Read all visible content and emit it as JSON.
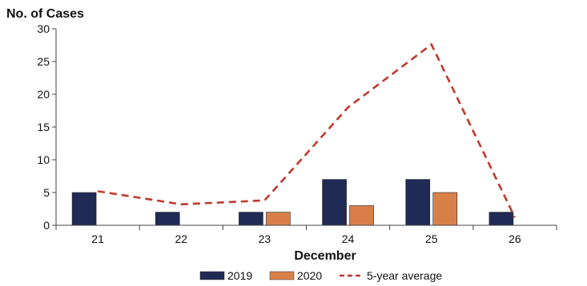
{
  "chart_data": {
    "type": "bar",
    "ylabel": "No. of Cases",
    "xlabel": "December",
    "categories": [
      "21",
      "22",
      "23",
      "24",
      "25",
      "26"
    ],
    "ylim": [
      0,
      30
    ],
    "yticks": [
      0,
      5,
      10,
      15,
      20,
      25,
      30
    ],
    "grid": false,
    "legend_position": "bottom",
    "series": [
      {
        "name": "2019",
        "kind": "bar",
        "color": "#1f2a55",
        "values": [
          5,
          2,
          2,
          7,
          7,
          2
        ]
      },
      {
        "name": "2020",
        "kind": "bar",
        "color": "#d9804a",
        "values": [
          null,
          null,
          2,
          3,
          5,
          null
        ]
      },
      {
        "name": "5-year average",
        "kind": "line",
        "style": "dashed",
        "color": "#c0392b",
        "values": [
          5.2,
          3.2,
          3.8,
          18,
          27.6,
          1.2
        ]
      }
    ]
  }
}
